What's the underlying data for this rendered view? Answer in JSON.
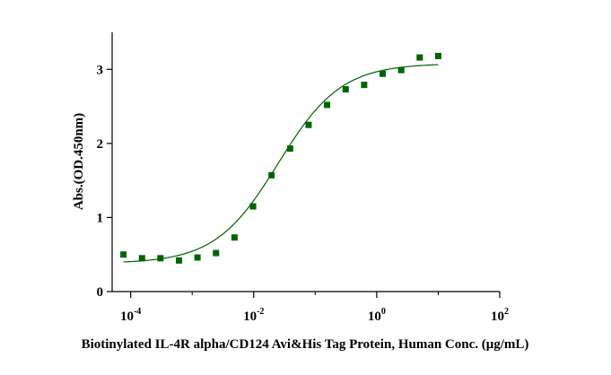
{
  "chart_data": {
    "type": "scatter",
    "title": "",
    "xlabel": "Biotinylated IL-4R alpha/CD124 Avi&His Tag Protein, Human Conc. (μg/mL)",
    "ylabel": "Abs.(OD.450nm)",
    "x_scale": "log10",
    "xlim": [
      5e-05,
      100
    ],
    "ylim": [
      0,
      3.5
    ],
    "x_ticks": [
      {
        "value": 0.0001,
        "base": "10",
        "exp": "-4"
      },
      {
        "value": 0.01,
        "base": "10",
        "exp": "-2"
      },
      {
        "value": 1,
        "base": "10",
        "exp": "0"
      },
      {
        "value": 100,
        "base": "10",
        "exp": "2"
      }
    ],
    "y_ticks": [
      0,
      1,
      2,
      3
    ],
    "grid": false,
    "legend": "none",
    "marker_color": "#006400",
    "curve_color": "#006400",
    "series": [
      {
        "x": [
          7.63e-05,
          0.000153,
          0.000305,
          0.00061,
          0.00122,
          0.00244,
          0.00488,
          0.00977,
          0.0195,
          0.0391,
          0.0781,
          0.156,
          0.313,
          0.625,
          1.25,
          2.5,
          5,
          10
        ],
        "y": [
          0.5,
          0.45,
          0.45,
          0.42,
          0.46,
          0.52,
          0.73,
          1.15,
          1.57,
          1.93,
          2.25,
          2.52,
          2.73,
          2.79,
          2.94,
          2.99,
          3.16,
          3.18
        ]
      }
    ],
    "fit": {
      "model": "4PL",
      "bottom": 0.38,
      "top": 3.08,
      "ec50": 0.025,
      "hill": 0.85
    }
  }
}
